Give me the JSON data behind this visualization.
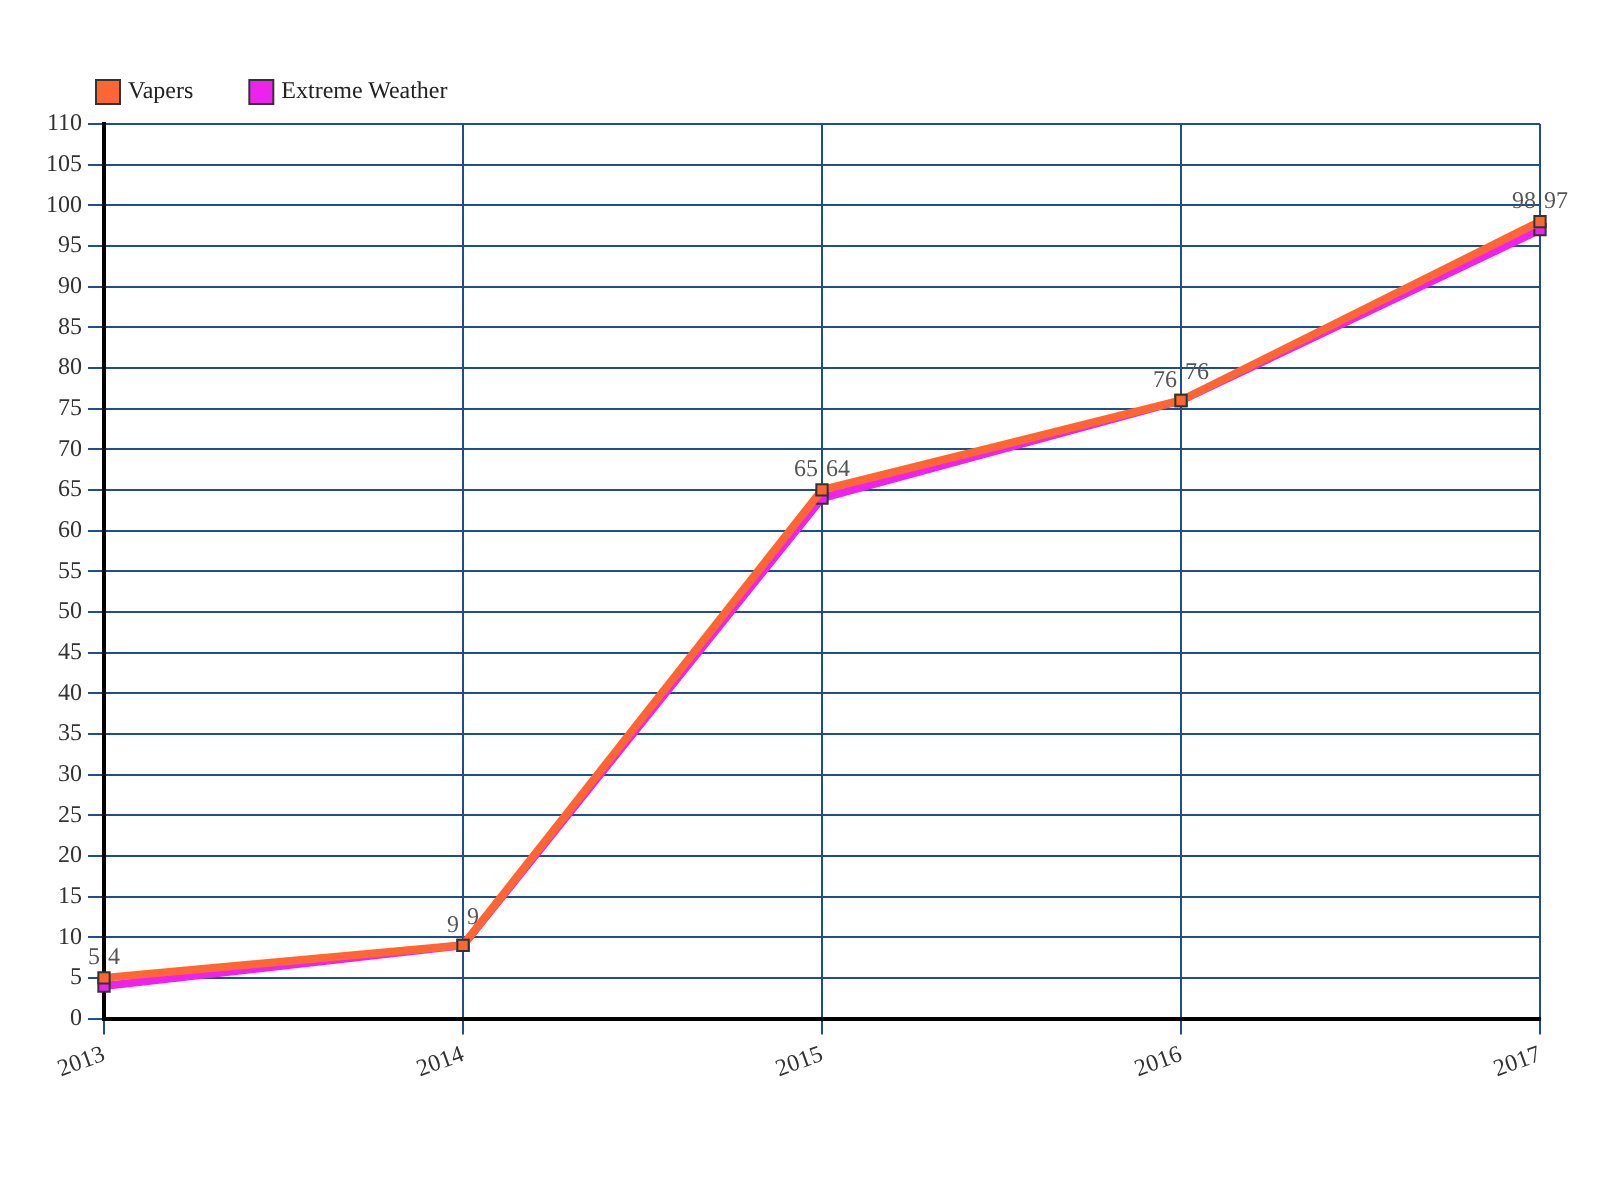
{
  "chart_data": {
    "type": "line",
    "categories": [
      "2013",
      "2014",
      "2015",
      "2016",
      "2017"
    ],
    "series": [
      {
        "name": "Vapers",
        "color": "#ff6633",
        "values": [
          5,
          9,
          65,
          76,
          98
        ]
      },
      {
        "name": "Extreme Weather",
        "color": "#ee22ee",
        "values": [
          4,
          9,
          64,
          76,
          97
        ]
      }
    ],
    "ylim": [
      0,
      110
    ],
    "yticks": [
      0,
      5,
      10,
      15,
      20,
      25,
      30,
      35,
      40,
      45,
      50,
      55,
      60,
      65,
      70,
      75,
      80,
      85,
      90,
      95,
      100,
      105,
      110
    ],
    "grid": true,
    "legend": "top left",
    "marker": "square",
    "data_labels": true
  }
}
